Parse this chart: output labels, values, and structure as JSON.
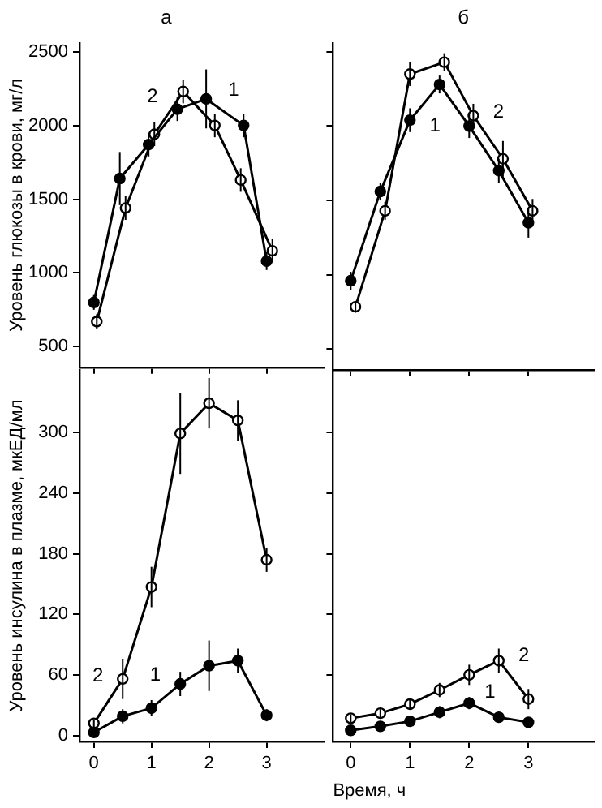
{
  "chart_data": [
    {
      "type": "line",
      "title": "а",
      "ylabel": "Уровень глюкозы в крови, мг/л",
      "xlim": [
        -0.25,
        4
      ],
      "xticks": [
        {
          "value": 0,
          "label": null
        },
        {
          "value": 1,
          "label": null
        },
        {
          "value": 2,
          "label": null
        },
        {
          "value": 3,
          "label": null
        }
      ],
      "ylim": [
        360,
        2560
      ],
      "yticks": [
        500,
        1000,
        1500,
        2000,
        2500
      ],
      "tick_labels": "y",
      "grid": false,
      "marker": "circle",
      "line_style": "solid",
      "series": [
        {
          "name": "1",
          "color": "#000000",
          "x": [
            0,
            0.45,
            0.95,
            1.45,
            1.95,
            2.6,
            3.0
          ],
          "values": [
            800,
            1640,
            1870,
            2110,
            2180,
            2000,
            1080
          ],
          "errors": [
            50,
            180,
            80,
            80,
            200,
            80,
            60
          ]
        },
        {
          "name": "2",
          "color": "#000000",
          "x": [
            0.05,
            0.55,
            1.05,
            1.55,
            2.1,
            2.55,
            3.1
          ],
          "values": [
            670,
            1440,
            1940,
            2230,
            2000,
            1630,
            1150
          ],
          "errors": [
            50,
            80,
            80,
            80,
            80,
            80,
            80
          ]
        }
      ]
    },
    {
      "type": "line",
      "title": "б",
      "xlim": [
        -0.3,
        4.1
      ],
      "xticks": [
        {
          "value": 0,
          "label": null
        },
        {
          "value": 1,
          "label": null
        },
        {
          "value": 2,
          "label": null
        },
        {
          "value": 3,
          "label": null
        }
      ],
      "ylim": [
        360,
        2560
      ],
      "yticks": [
        {
          "value": 500,
          "label": null
        },
        {
          "value": 1000,
          "label": null
        },
        {
          "value": 1500,
          "label": null
        },
        {
          "value": 2000,
          "label": null
        },
        {
          "value": 2500,
          "label": null
        }
      ],
      "tick_labels": false,
      "grid": false,
      "marker": "circle",
      "line_style": "solid",
      "series": [
        {
          "name": "1",
          "color": "#000000",
          "x": [
            0,
            0.5,
            1,
            1.5,
            2,
            2.5,
            3
          ],
          "values": [
            960,
            1560,
            2040,
            2280,
            2000,
            1700,
            1350
          ],
          "errors": [
            60,
            60,
            80,
            60,
            80,
            80,
            100
          ]
        },
        {
          "name": "2",
          "color": "#000000",
          "x": [
            0.08,
            0.58,
            1,
            1.58,
            2.07,
            2.57,
            3.07
          ],
          "values": [
            785,
            1430,
            2350,
            2430,
            2070,
            1780,
            1430
          ],
          "errors": [
            40,
            60,
            80,
            60,
            80,
            120,
            80
          ]
        }
      ]
    },
    {
      "type": "line",
      "ylabel": "Уровень инсулина в плазме, мкЕД/мл",
      "xlim": [
        -0.25,
        4
      ],
      "xticks": [
        0,
        1,
        2,
        3
      ],
      "ylim": [
        -6,
        362
      ],
      "yticks": [
        0,
        60,
        120,
        180,
        240,
        300
      ],
      "grid": false,
      "marker": "circle",
      "line_style": "solid",
      "series": [
        {
          "name": "1",
          "color": "#000000",
          "x": [
            0,
            0.5,
            1,
            1.5,
            2,
            2.5,
            3
          ],
          "values": [
            3,
            19,
            27,
            51,
            69,
            74,
            20
          ],
          "errors": [
            3,
            7,
            8,
            12,
            25,
            12,
            6
          ]
        },
        {
          "name": "2",
          "color": "#000000",
          "x": [
            0,
            0.5,
            1,
            1.5,
            2,
            2.5,
            3
          ],
          "values": [
            12,
            56,
            147,
            299,
            329,
            312,
            174
          ],
          "errors": [
            4,
            20,
            20,
            40,
            25,
            20,
            12
          ]
        }
      ]
    },
    {
      "type": "line",
      "xlabel": "Время, ч",
      "xlim": [
        -0.3,
        4.1
      ],
      "xticks": [
        0,
        1,
        2,
        3
      ],
      "ylim": [
        -6,
        362
      ],
      "yticks": [
        {
          "value": 60,
          "label": null
        },
        {
          "value": 120,
          "label": null
        },
        {
          "value": 180,
          "label": null
        },
        {
          "value": 240,
          "label": null
        },
        {
          "value": 300,
          "label": null
        }
      ],
      "tick_labels": "x",
      "grid": false,
      "marker": "circle",
      "line_style": "solid",
      "series": [
        {
          "name": "1",
          "color": "#000000",
          "x": [
            0,
            0.5,
            1,
            1.5,
            2,
            2.5,
            3
          ],
          "values": [
            5,
            9,
            14,
            23,
            32,
            18,
            13
          ],
          "errors": [
            3,
            3,
            5,
            6,
            6,
            5,
            4
          ]
        },
        {
          "name": "2",
          "color": "#000000",
          "x": [
            0,
            0.5,
            1,
            1.5,
            2,
            2.5,
            3
          ],
          "values": [
            17,
            22,
            31,
            45,
            60,
            74,
            36
          ],
          "errors": [
            4,
            4,
            5,
            7,
            10,
            12,
            10
          ]
        }
      ]
    }
  ]
}
